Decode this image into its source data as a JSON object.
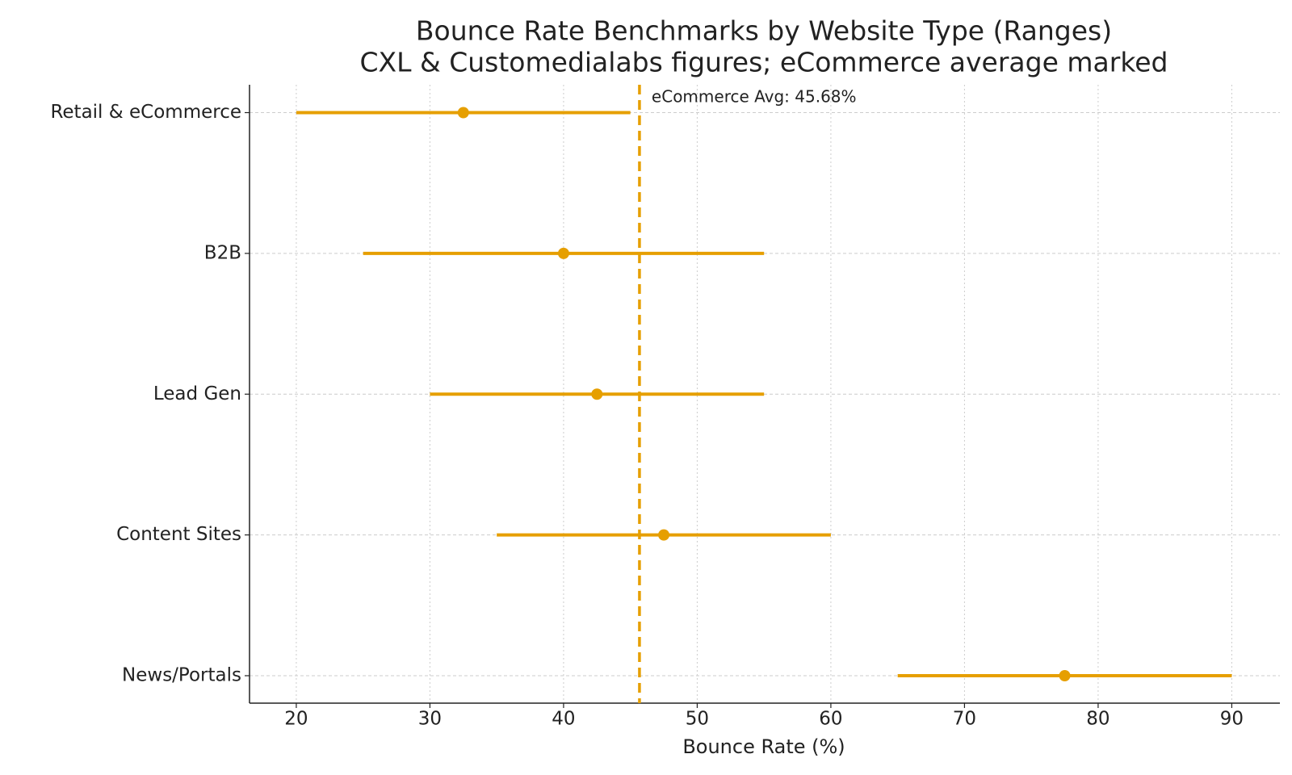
{
  "chart_data": {
    "type": "range",
    "title": "Bounce Rate Benchmarks by Website Type (Ranges)",
    "subtitle": "CXL & Customedialabs figures; eCommerce average marked",
    "x_label": "Bounce Rate (%)",
    "categories": [
      "Retail & eCommerce",
      "B2B",
      "Lead Gen",
      "Content Sites",
      "News/Portals"
    ],
    "low": [
      20,
      25,
      30,
      35,
      65
    ],
    "high": [
      45,
      55,
      55,
      60,
      90
    ],
    "values": [
      32.5,
      40,
      42.5,
      47.5,
      77.5
    ],
    "color": "#e69f00",
    "reference": {
      "value": 45.68,
      "label": "eCommerce Avg: 45.68%"
    },
    "xlim": [
      16.5,
      93.6
    ],
    "xticks": [
      20,
      30,
      40,
      50,
      60,
      70,
      80,
      90
    ],
    "grid": true
  }
}
